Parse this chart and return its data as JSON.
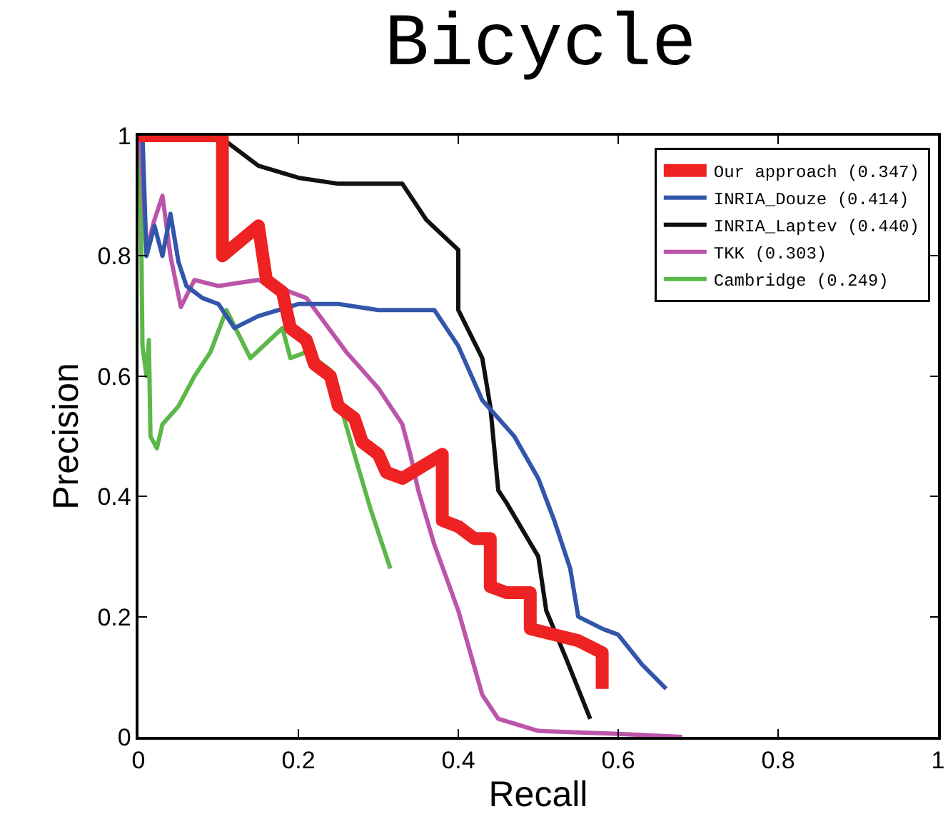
{
  "chart_data": {
    "type": "line",
    "title": "Bicycle",
    "xlabel": "Recall",
    "ylabel": "Precision",
    "xlim": [
      0,
      1
    ],
    "ylim": [
      0,
      1
    ],
    "xticks": [
      0,
      0.2,
      0.4,
      0.6,
      0.8,
      1
    ],
    "yticks": [
      0,
      0.2,
      0.4,
      0.6,
      0.8,
      1
    ],
    "grid": false,
    "legend": "top right",
    "marker": "none",
    "line_style": "solid",
    "series": [
      {
        "name": "Our approach (0.347)",
        "color": "#ee2222",
        "x": [
          0,
          0.105,
          0.105,
          0.15,
          0.16,
          0.18,
          0.19,
          0.21,
          0.22,
          0.24,
          0.25,
          0.27,
          0.28,
          0.3,
          0.31,
          0.33,
          0.38,
          0.38,
          0.4,
          0.42,
          0.44,
          0.44,
          0.46,
          0.49,
          0.49,
          0.52,
          0.55,
          0.58,
          0.58
        ],
        "values": [
          1,
          1,
          0.8,
          0.85,
          0.76,
          0.74,
          0.68,
          0.66,
          0.62,
          0.6,
          0.55,
          0.53,
          0.49,
          0.47,
          0.44,
          0.43,
          0.47,
          0.36,
          0.35,
          0.33,
          0.33,
          0.25,
          0.24,
          0.24,
          0.18,
          0.17,
          0.16,
          0.14,
          0.08
        ]
      },
      {
        "name": "INRIA_Douze (0.414)",
        "color": "#3355aa",
        "x": [
          0,
          0.005,
          0.01,
          0.02,
          0.03,
          0.04,
          0.05,
          0.06,
          0.08,
          0.1,
          0.12,
          0.15,
          0.2,
          0.25,
          0.3,
          0.345,
          0.37,
          0.4,
          0.43,
          0.47,
          0.5,
          0.52,
          0.54,
          0.55,
          0.58,
          0.6,
          0.63,
          0.66
        ],
        "values": [
          1,
          1,
          0.8,
          0.85,
          0.8,
          0.87,
          0.79,
          0.75,
          0.73,
          0.72,
          0.68,
          0.7,
          0.72,
          0.72,
          0.71,
          0.71,
          0.71,
          0.65,
          0.56,
          0.5,
          0.43,
          0.36,
          0.28,
          0.2,
          0.18,
          0.17,
          0.12,
          0.08
        ]
      },
      {
        "name": "INRIA_Laptev (0.440)",
        "color": "#111111",
        "x": [
          0,
          0.1,
          0.12,
          0.15,
          0.2,
          0.25,
          0.3,
          0.33,
          0.36,
          0.4,
          0.4,
          0.43,
          0.44,
          0.45,
          0.46,
          0.5,
          0.51,
          0.535,
          0.565
        ],
        "values": [
          1,
          1,
          0.98,
          0.95,
          0.93,
          0.92,
          0.92,
          0.92,
          0.86,
          0.81,
          0.71,
          0.63,
          0.55,
          0.41,
          0.39,
          0.3,
          0.21,
          0.13,
          0.03
        ]
      },
      {
        "name": "TKK (0.303)",
        "color": "#bb55aa",
        "x": [
          0,
          0.002,
          0.01,
          0.02,
          0.03,
          0.04,
          0.053,
          0.07,
          0.1,
          0.15,
          0.21,
          0.26,
          0.3,
          0.33,
          0.34,
          0.35,
          0.37,
          0.4,
          0.43,
          0.45,
          0.5,
          0.6,
          0.68
        ],
        "values": [
          1,
          1,
          0.81,
          0.86,
          0.9,
          0.8,
          0.715,
          0.76,
          0.75,
          0.76,
          0.73,
          0.64,
          0.58,
          0.52,
          0.47,
          0.41,
          0.32,
          0.21,
          0.07,
          0.03,
          0.01,
          0.005,
          0
        ]
      },
      {
        "name": "Cambridge (0.249)",
        "color": "#5bb849",
        "x": [
          0,
          0.002,
          0.005,
          0.01,
          0.013,
          0.015,
          0.023,
          0.03,
          0.05,
          0.07,
          0.09,
          0.11,
          0.14,
          0.18,
          0.19,
          0.21,
          0.24,
          0.27,
          0.29,
          0.315
        ],
        "values": [
          1,
          1,
          0.65,
          0.6,
          0.66,
          0.5,
          0.48,
          0.52,
          0.55,
          0.6,
          0.64,
          0.71,
          0.63,
          0.68,
          0.63,
          0.64,
          0.61,
          0.47,
          0.38,
          0.28
        ]
      }
    ]
  }
}
